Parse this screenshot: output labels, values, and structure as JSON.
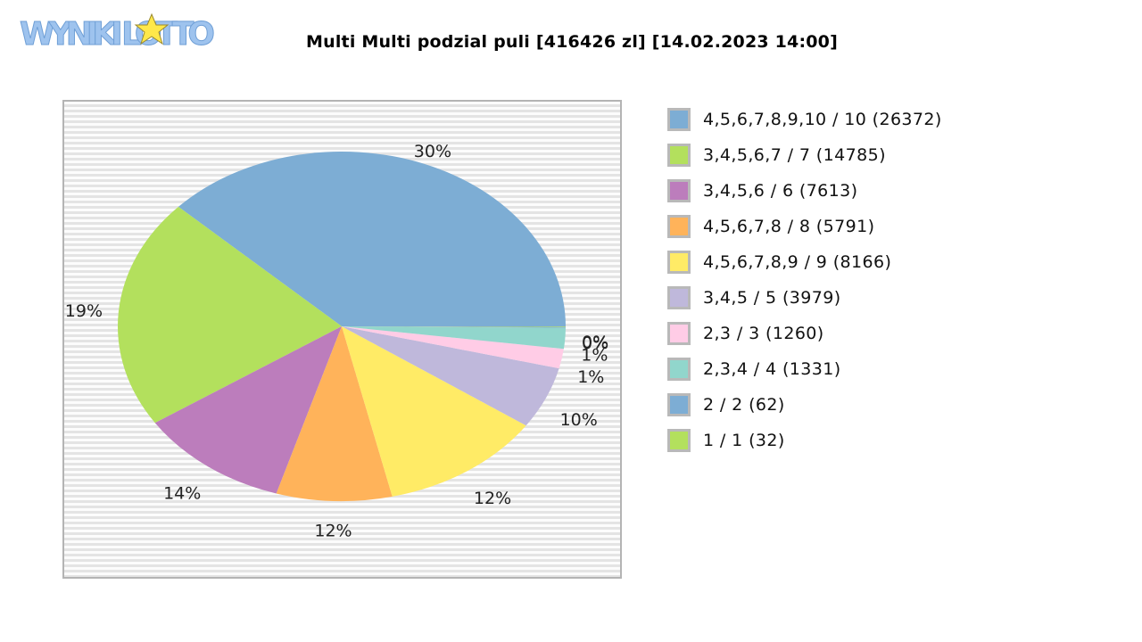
{
  "chart_data": {
    "type": "pie",
    "title": "Multi Multi podzial puli [416426 zl] [14.02.2023 14:00]",
    "legend_position": "right",
    "slices": [
      {
        "label": "4,5,6,7,8,9,10 / 10 (26372)",
        "value": 26372,
        "percent_label": "30%",
        "color": "#7dadd4"
      },
      {
        "label": "3,4,5,6,7 / 7 (14785)",
        "value": 14785,
        "percent_label": "19%",
        "color": "#b3e05d"
      },
      {
        "label": "3,4,5,6 / 6 (7613)",
        "value": 7613,
        "percent_label": "14%",
        "color": "#bc7dbc"
      },
      {
        "label": "4,5,6,7,8 / 8 (5791)",
        "value": 5791,
        "percent_label": "12%",
        "color": "#ffb35a"
      },
      {
        "label": "4,5,6,7,8,9 / 9 (8166)",
        "value": 8166,
        "percent_label": "12%",
        "color": "#ffeb66"
      },
      {
        "label": "3,4,5 / 5 (3979)",
        "value": 3979,
        "percent_label": "10%",
        "color": "#bfb8db"
      },
      {
        "label": "2,3 / 3 (1260)",
        "value": 1260,
        "percent_label": "1%",
        "color": "#ffcce6"
      },
      {
        "label": "2,3,4 / 4 (1331)",
        "value": 1331,
        "percent_label": "1%",
        "color": "#91d6cc"
      },
      {
        "label": "2 / 2 (62)",
        "value": 62,
        "percent_label": "0%",
        "color": "#7dadd4"
      },
      {
        "label": "1 / 1 (32)",
        "value": 32,
        "percent_label": "0%",
        "color": "#b3e05d"
      }
    ]
  },
  "logo": {
    "text": "WYNIKI LOTTO"
  }
}
